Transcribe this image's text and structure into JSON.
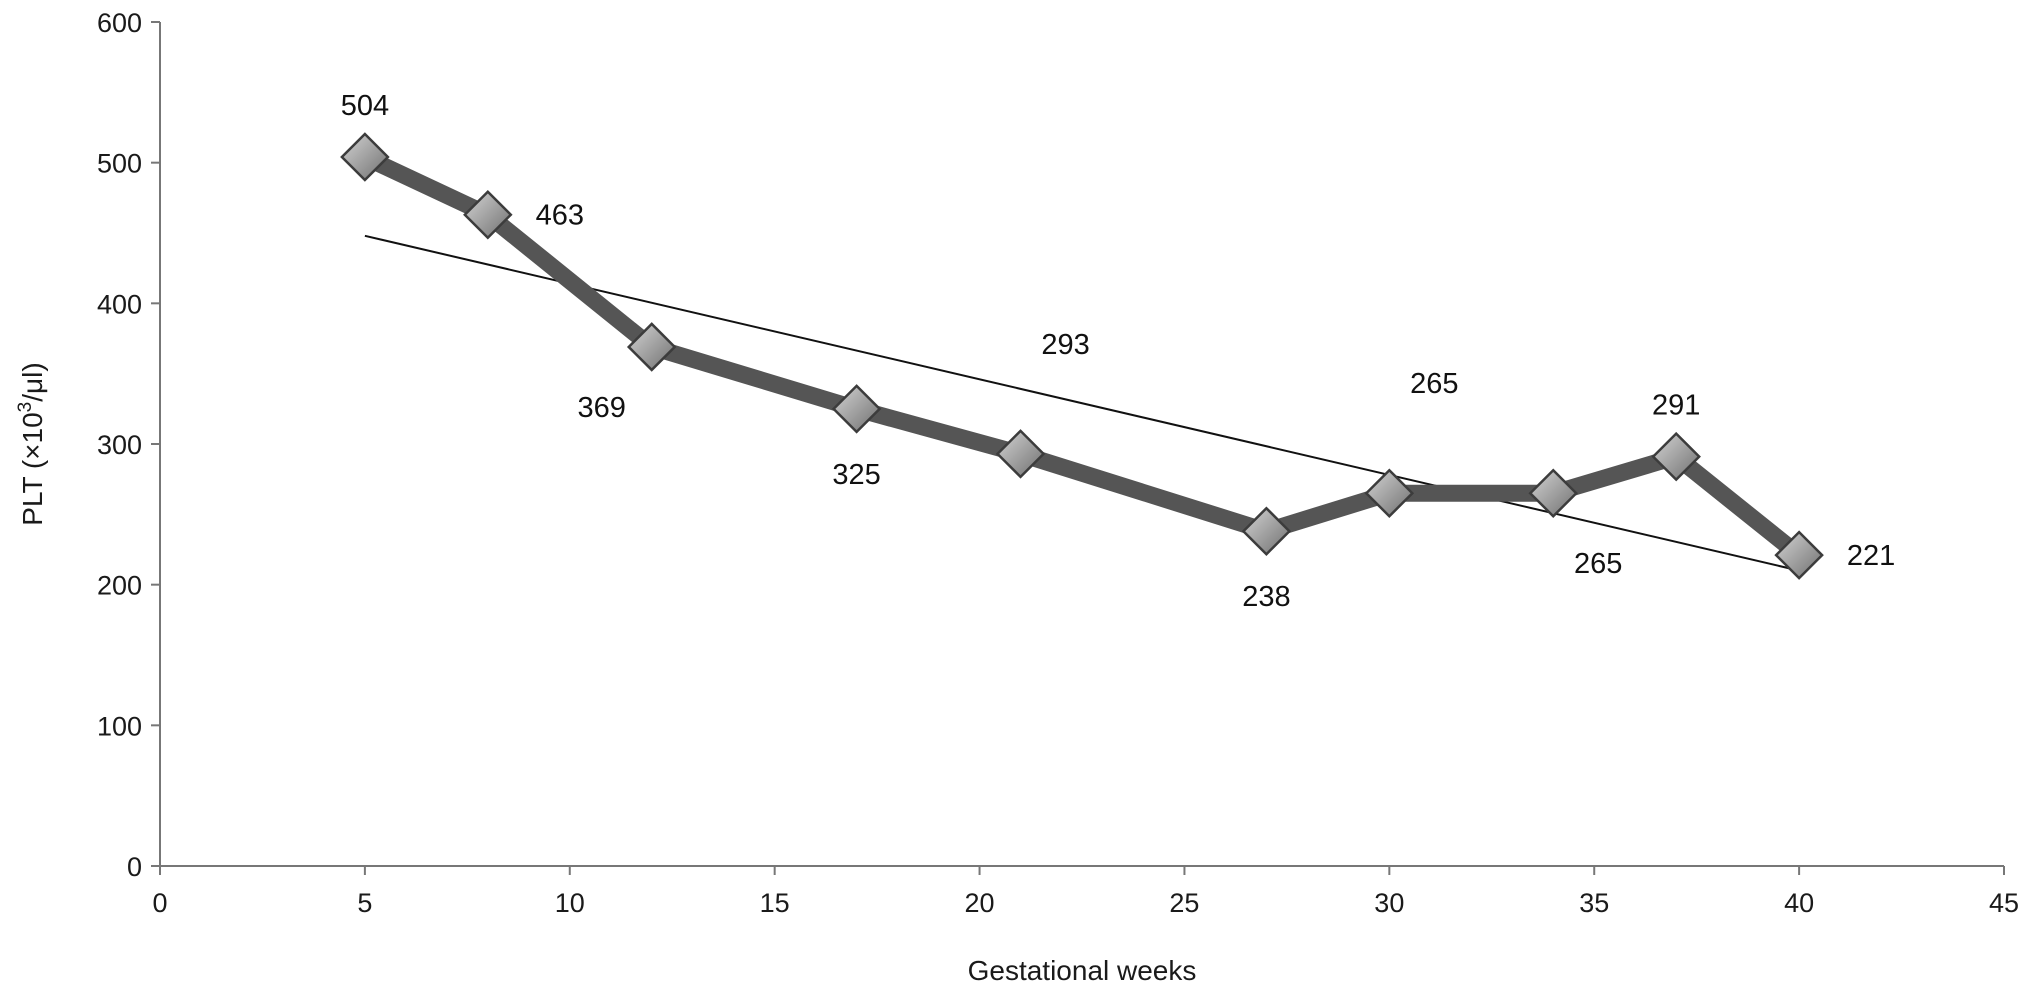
{
  "chart_data": {
    "type": "line",
    "title": "",
    "xlabel": "Gestational weeks",
    "ylabel": {
      "base": "PLT (×10",
      "sup": "3",
      "tail": "/μl)"
    },
    "xlim": [
      0,
      45
    ],
    "ylim": [
      0,
      600
    ],
    "x_ticks": [
      0,
      5,
      10,
      15,
      20,
      25,
      30,
      35,
      40,
      45
    ],
    "y_ticks": [
      0,
      100,
      200,
      300,
      400,
      500,
      600
    ],
    "grid": false,
    "legend": "none",
    "series": [
      {
        "x": [
          5,
          8,
          12,
          17,
          21,
          27,
          30,
          34,
          37,
          40
        ],
        "values": [
          504,
          463,
          369,
          325,
          293,
          238,
          265,
          265,
          291,
          221
        ],
        "marker": "diamond",
        "line_color": "#555555",
        "marker_color": "#9a9a9a"
      }
    ],
    "trendline": {
      "x": [
        5,
        40
      ],
      "values": [
        448,
        210
      ],
      "color": "#111111"
    },
    "data_labels": [
      {
        "x": 5,
        "y": 504,
        "text": "504",
        "pos": "above"
      },
      {
        "x": 8,
        "y": 463,
        "text": "463",
        "pos": "right"
      },
      {
        "x": 12,
        "y": 369,
        "text": "369",
        "pos": "below-left"
      },
      {
        "x": 17,
        "y": 325,
        "text": "325",
        "pos": "below"
      },
      {
        "x": 21,
        "y": 293,
        "text": "293",
        "pos": "far-above-right"
      },
      {
        "x": 27,
        "y": 238,
        "text": "238",
        "pos": "below"
      },
      {
        "x": 30,
        "y": 265,
        "text": "265",
        "pos": "far-above-right"
      },
      {
        "x": 34,
        "y": 265,
        "text": "265",
        "pos": "below-right"
      },
      {
        "x": 37,
        "y": 291,
        "text": "291",
        "pos": "above"
      },
      {
        "x": 40,
        "y": 221,
        "text": "221",
        "pos": "right"
      }
    ]
  }
}
